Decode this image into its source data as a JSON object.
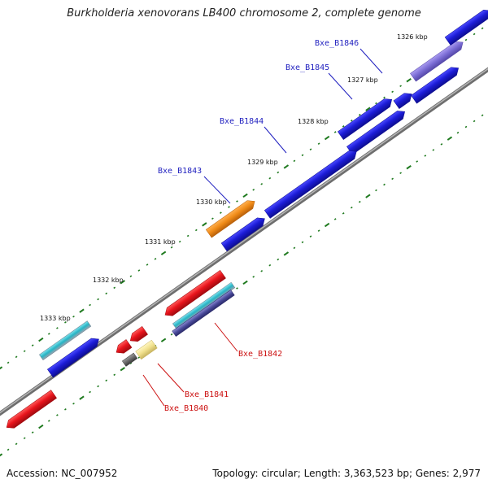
{
  "title": "Burkholderia xenovorans LB400 chromosome 2, complete genome",
  "footer": {
    "accession": "Accession: NC_007952",
    "summary": "Topology: circular; Length: 3,363,523 bp; Genes: 2,977"
  },
  "colors": {
    "backbone": "#7d7d7d",
    "tick": "#1f7a1f",
    "forward_label": "#1f1fbf",
    "reverse_label": "#cc1111",
    "blue": "#1c1cd6",
    "red": "#e8141c",
    "orange": "#ef8a17",
    "lavender": "#7a6cd4",
    "teal": "#26b4c4",
    "navy": "#4a4a9a",
    "grey": "#6a6a6a",
    "cream": "#f0e08c"
  },
  "kbp_labels": [
    "1326 kbp",
    "1327 kbp",
    "1328 kbp",
    "1329 kbp",
    "1330 kbp",
    "1331 kbp",
    "1332 kbp",
    "1333 kbp"
  ],
  "gene_labels": {
    "forward": [
      "Bxe_B1846",
      "Bxe_B1845",
      "Bxe_B1844",
      "Bxe_B1843"
    ],
    "reverse": [
      "Bxe_B1842",
      "Bxe_B1841",
      "Bxe_B1840"
    ]
  }
}
